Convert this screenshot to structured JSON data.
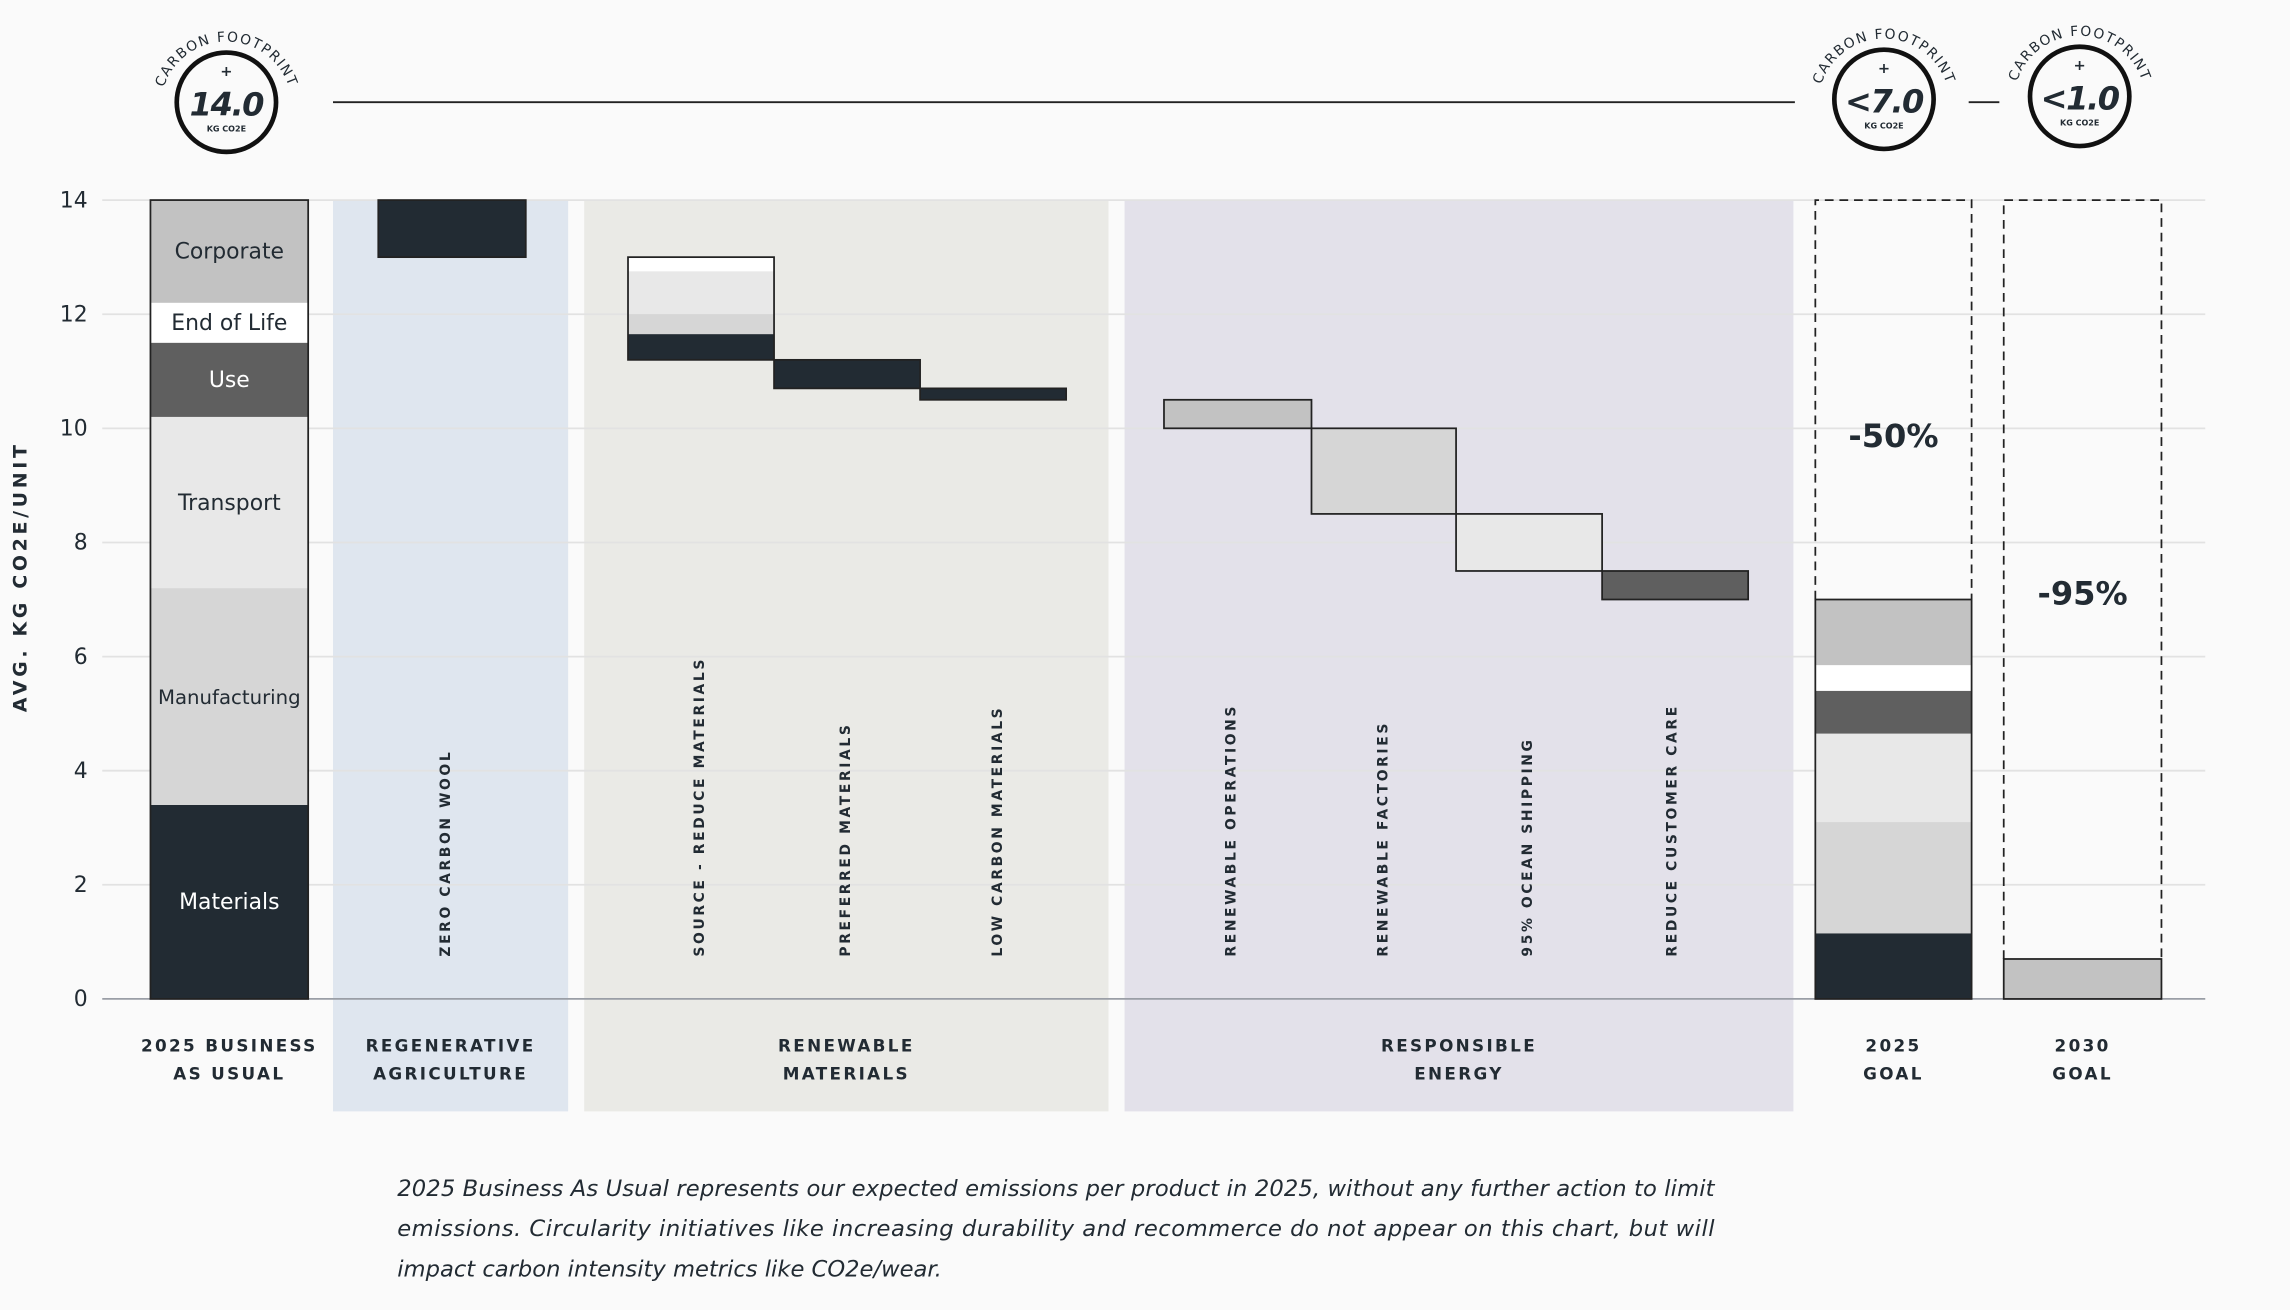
{
  "chart_data": {
    "type": "waterfall",
    "y_label": "AVG. KG CO2E/UNIT",
    "ylim": [
      0,
      14
    ],
    "yticks": [
      0,
      2,
      4,
      6,
      8,
      10,
      12,
      14
    ],
    "grid": true,
    "badges": [
      {
        "arc": "CARBON FOOTPRINT",
        "sign": "+",
        "value": "14.0",
        "unit": "KG CO2E"
      },
      {
        "arc": "CARBON FOOTPRINT",
        "sign": "+",
        "value": "<7.0",
        "unit": "KG CO2E"
      },
      {
        "arc": "CARBON FOOTPRINT",
        "sign": "+",
        "value": "<1.0",
        "unit": "KG CO2E"
      }
    ],
    "baseline": {
      "label": [
        "2025 BUSINESS",
        "AS USUAL"
      ],
      "categories": [
        "Materials",
        "Manufacturing",
        "Transport",
        "Use",
        "End of Life",
        "Corporate"
      ],
      "values": [
        3.4,
        3.8,
        3.0,
        1.3,
        0.7,
        1.8
      ],
      "colors": [
        "#222b33",
        "#d6d6d6",
        "#e8e8e8",
        "#5f5f5f",
        "#ffffff",
        "#c2c2c2"
      ]
    },
    "groups": [
      {
        "label": [
          "REGENERATIVE",
          "AGRICULTURE"
        ],
        "color": "#dfe6ef",
        "steps": [
          {
            "label": "ZERO CARBON WOOL",
            "values": [
              1.0
            ],
            "colors": [
              "#222b33"
            ]
          }
        ]
      },
      {
        "label": [
          "RENEWABLE",
          "MATERIALS"
        ],
        "color": "#eaeae6",
        "steps": [
          {
            "label": "SOURCE - REDUCE MATERIALS",
            "values": [
              0.25,
              0.75,
              0.35,
              0.45
            ],
            "colors": [
              "#ffffff",
              "#e8e8e8",
              "#d6d6d6",
              "#222b33"
            ]
          },
          {
            "label": "PREFERRED MATERIALS",
            "values": [
              0.5
            ],
            "colors": [
              "#222b33"
            ]
          },
          {
            "label": "LOW CARBON MATERIALS",
            "values": [
              0.2
            ],
            "colors": [
              "#222b33"
            ]
          }
        ]
      },
      {
        "label": [
          "RESPONSIBLE",
          "ENERGY"
        ],
        "color": "#e3e1ea",
        "steps": [
          {
            "label": "RENEWABLE OPERATIONS",
            "values": [
              0.5
            ],
            "colors": [
              "#c2c2c2"
            ]
          },
          {
            "label": "RENEWABLE  FACTORIES",
            "values": [
              1.5
            ],
            "colors": [
              "#d6d6d6"
            ]
          },
          {
            "label": "95% OCEAN SHIPPING",
            "values": [
              1.0
            ],
            "colors": [
              "#e8e8e8"
            ]
          },
          {
            "label": "REDUCE CUSTOMER CARE",
            "values": [
              0.5
            ],
            "colors": [
              "#5f5f5f"
            ]
          }
        ]
      }
    ],
    "goals": [
      {
        "label": [
          "2025",
          "GOAL"
        ],
        "values": [
          1.15,
          1.95,
          1.55,
          0.75,
          0.45,
          1.15
        ],
        "colors": [
          "#222b33",
          "#d6d6d6",
          "#e8e8e8",
          "#5f5f5f",
          "#ffffff",
          "#c2c2c2"
        ],
        "annotation": "-50%"
      },
      {
        "label": [
          "2030",
          "GOAL"
        ],
        "values": [
          0.7
        ],
        "colors": [
          "#c2c2c2"
        ],
        "annotation": "-95%"
      }
    ],
    "notes": [
      "2025 Business As Usual represents our expected emissions per product in 2025, without any further action to limit",
      "emissions. Circularity initiatives like increasing durability and recommerce do not appear on this chart, but will",
      "impact carbon intensity metrics like CO2e/wear."
    ]
  }
}
